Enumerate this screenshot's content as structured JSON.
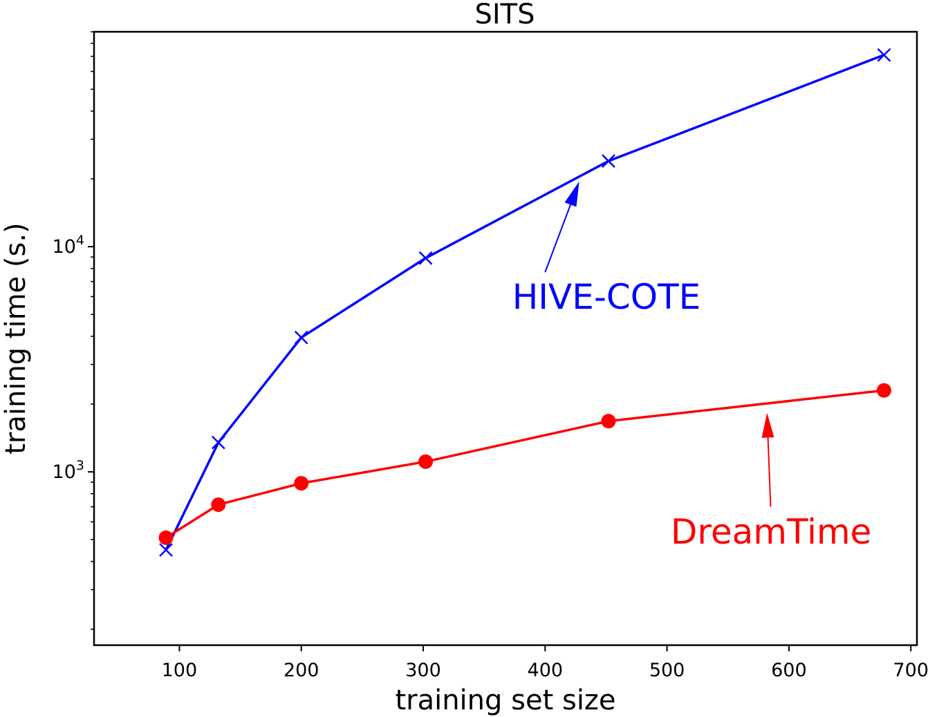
{
  "chart_data": {
    "type": "line",
    "title": "SITS",
    "xlabel": "training set size",
    "ylabel": "training time (s.)",
    "xlim": [
      30,
      705
    ],
    "ylim": [
      170,
      90000
    ],
    "yscale": "log",
    "grid": false,
    "x_ticks": [
      100,
      200,
      300,
      400,
      500,
      600,
      700
    ],
    "x_tick_labels": [
      "100",
      "200",
      "300",
      "400",
      "500",
      "600",
      "700"
    ],
    "y_ticks": [
      {
        "value": 1000,
        "base": "10",
        "exp": "3"
      },
      {
        "value": 10000,
        "base": "10",
        "exp": "4"
      }
    ],
    "series": [
      {
        "label": "HIVE-COTE",
        "color": "#0000ff",
        "marker": "x",
        "x": [
          89,
          132,
          200,
          302,
          452,
          678
        ],
        "y": [
          450,
          1350,
          3950,
          8900,
          24000,
          71000
        ]
      },
      {
        "label": "DreamTime",
        "color": "#ff0000",
        "marker": "o",
        "x": [
          89,
          132,
          200,
          302,
          452,
          678
        ],
        "y": [
          510,
          715,
          890,
          1110,
          1680,
          2300
        ]
      }
    ],
    "annotations": [
      {
        "text": "HIVE-COTE",
        "color": "#0000ff",
        "text_at": [
          373,
          5300
        ],
        "arrow_from": [
          400,
          7700
        ],
        "arrow_to": [
          428,
          19500
        ]
      },
      {
        "text": "DreamTime",
        "color": "#ff0000",
        "text_at": [
          503,
          480
        ],
        "arrow_from": [
          585,
          700
        ],
        "arrow_to": [
          582,
          1830
        ]
      }
    ]
  }
}
